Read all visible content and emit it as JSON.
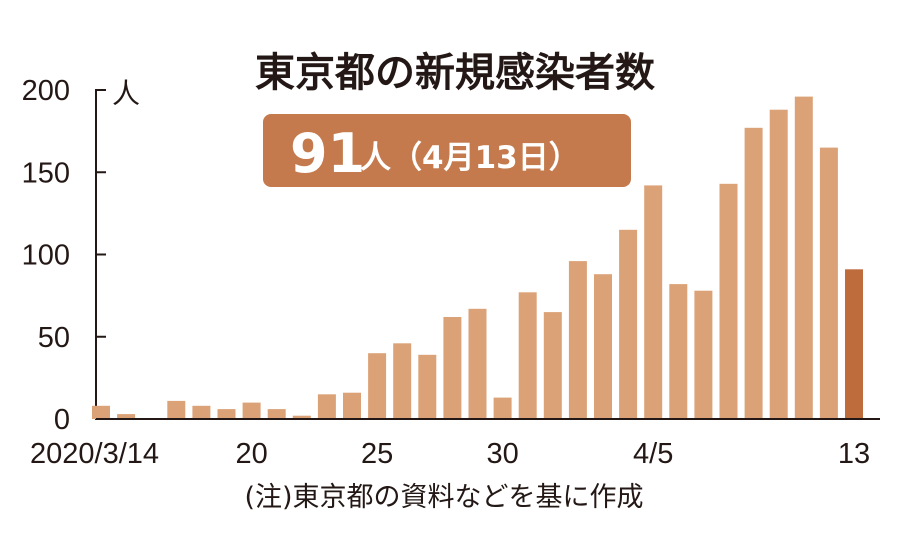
{
  "chart_data": {
    "type": "bar",
    "title": "東京都の新規感染者数",
    "ylabel_unit": "人",
    "ylim": [
      0,
      200
    ],
    "yticks": [
      0,
      50,
      100,
      150,
      200
    ],
    "x_tick_labels": [
      {
        "index": 0,
        "label": "2020/3/14"
      },
      {
        "index": 6,
        "label": "20"
      },
      {
        "index": 11,
        "label": "25"
      },
      {
        "index": 16,
        "label": "30"
      },
      {
        "index": 22,
        "label": "4/5"
      },
      {
        "index": 30,
        "label": "13"
      }
    ],
    "values": [
      8,
      3,
      0,
      11,
      8,
      6,
      10,
      6,
      2,
      15,
      16,
      40,
      46,
      39,
      62,
      67,
      13,
      77,
      65,
      96,
      88,
      115,
      142,
      82,
      78,
      143,
      177,
      188,
      196,
      165,
      91
    ],
    "highlight": {
      "index": 30,
      "value": "91",
      "unit_date": "人（4月13日）"
    },
    "note": "(注)東京都の資料などを基に作成",
    "colors": {
      "bar": "#dba277",
      "highlight_bar": "#bf6c3d",
      "highlight_box": "#c47a4c",
      "axis": "#231815"
    }
  }
}
